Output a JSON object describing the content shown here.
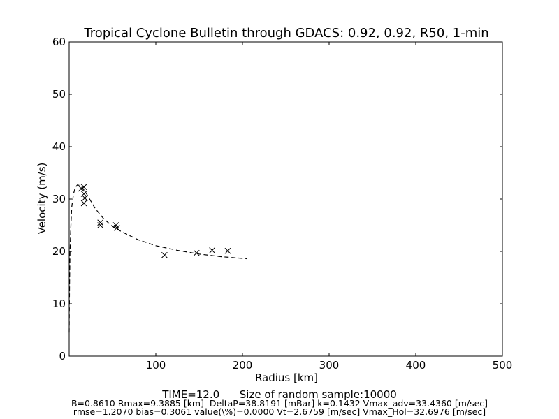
{
  "chart_data": {
    "type": "scatter",
    "title": "Tropical Cyclone Bulletin through GDACS: 0.92, 0.92, R50, 1-min",
    "xlabel": "Radius [km]",
    "ylabel": "Velocity (m/s)",
    "xlim": [
      0,
      500
    ],
    "ylim": [
      0,
      60
    ],
    "x_ticks": [
      100,
      200,
      300,
      400,
      500
    ],
    "y_ticks": [
      0,
      10,
      20,
      30,
      40,
      50,
      60
    ],
    "grid": false,
    "series": [
      {
        "style": "x-marker",
        "color": "#000000",
        "points": [
          [
            14,
            32.0
          ],
          [
            17,
            32.3
          ],
          [
            17,
            31.0
          ],
          [
            18,
            30.2
          ],
          [
            17,
            29.2
          ],
          [
            36,
            25.5
          ],
          [
            36,
            25.0
          ],
          [
            54,
            25.0
          ],
          [
            55,
            24.5
          ],
          [
            110,
            19.3
          ],
          [
            147,
            19.7
          ],
          [
            165,
            20.2
          ],
          [
            183,
            20.1
          ]
        ]
      },
      {
        "style": "dashed-line",
        "color": "#000000",
        "points": [
          [
            0,
            4.5
          ],
          [
            0.5,
            14
          ],
          [
            1,
            20
          ],
          [
            2,
            25
          ],
          [
            3,
            28.5
          ],
          [
            5,
            31
          ],
          [
            7,
            32.2
          ],
          [
            9.4,
            32.7
          ],
          [
            12,
            32.6
          ],
          [
            16,
            32.0
          ],
          [
            20,
            31.0
          ],
          [
            25,
            29.6
          ],
          [
            30,
            28.2
          ],
          [
            40,
            26.2
          ],
          [
            50,
            24.8
          ],
          [
            60,
            23.8
          ],
          [
            80,
            22.2
          ],
          [
            100,
            21.1
          ],
          [
            125,
            20.2
          ],
          [
            150,
            19.5
          ],
          [
            175,
            19.0
          ],
          [
            205,
            18.6
          ]
        ]
      }
    ]
  },
  "footer": {
    "time_line": "TIME=12.0      Size of random sample:10000",
    "stats_line_1": "B=0.8610 Rmax=9.3885 [km]  DeltaP=38.8191 [mBar] k=0.1432 Vmax_adv=33.4360 [m/sec]",
    "stats_line_2": "rmse=1.2070 bias=0.3061 value(\\%)=0.0000 Vt=2.6759 [m/sec] Vmax_Hol=32.6976 [m/sec]"
  }
}
